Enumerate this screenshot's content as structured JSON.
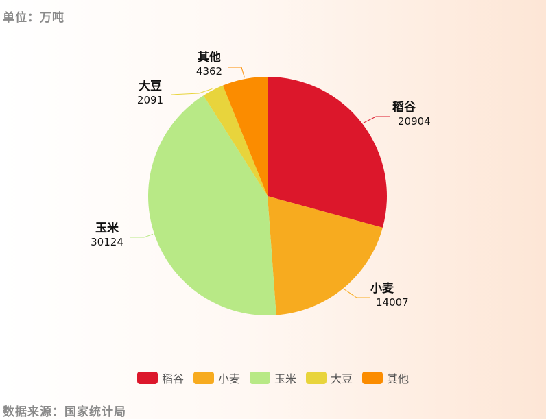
{
  "unit_label": "单位：万吨",
  "source_label": "数据来源：国家统计局",
  "chart_data": {
    "type": "pie",
    "categories": [
      "稻谷",
      "小麦",
      "玉米",
      "大豆",
      "其他"
    ],
    "values": [
      20904,
      14007,
      30124,
      2091,
      4362
    ],
    "colors": [
      "#dc172b",
      "#f7ab1f",
      "#b8e986",
      "#e8d43c",
      "#fb8c00"
    ],
    "unit": "万吨",
    "legend_position": "bottom"
  }
}
